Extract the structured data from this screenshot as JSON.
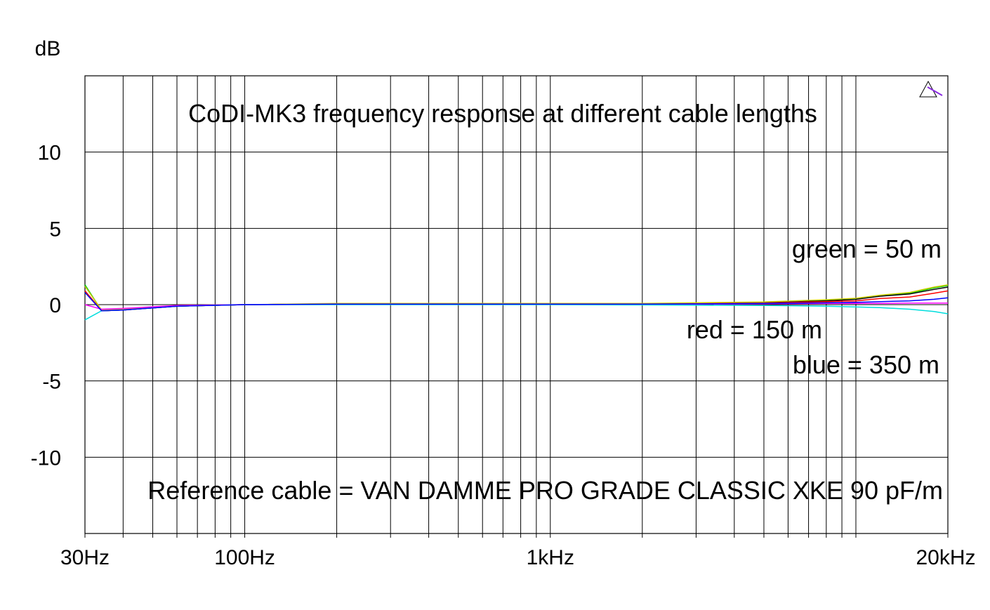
{
  "chart_data": {
    "type": "line",
    "title": "CoDI-MK3 frequency response at different cable lengths",
    "ylabel": "dB",
    "xlabel": "",
    "x_scale": "log",
    "xlim": [
      30,
      20000
    ],
    "ylim": [
      -15,
      15
    ],
    "grid": true,
    "x_ticks": [
      {
        "value": 30,
        "label": "30Hz"
      },
      {
        "value": 100,
        "label": "100Hz"
      },
      {
        "value": 1000,
        "label": "1kHz"
      },
      {
        "value": 20000,
        "label": "20kHz"
      }
    ],
    "y_ticks": [
      {
        "value": 10,
        "label": "10"
      },
      {
        "value": 5,
        "label": "5"
      },
      {
        "value": 0,
        "label": "0"
      },
      {
        "value": -5,
        "label": "-5"
      },
      {
        "value": -10,
        "label": "-10"
      }
    ],
    "annotations": {
      "green": "green = 50 m",
      "red": "red = 150 m",
      "blue": "blue = 350 m",
      "reference": "Reference cable = VAN DAMME PRO GRADE CLASSIC XKE 90 pF/m"
    },
    "series": [
      {
        "color": "#00cc00",
        "x": [
          30,
          34,
          40,
          60,
          100,
          200,
          500,
          1000,
          2000,
          5000,
          8000,
          10000,
          12000,
          15000,
          18000,
          20000
        ],
        "values": [
          1.3,
          -0.4,
          -0.35,
          -0.1,
          0.0,
          0.05,
          0.05,
          0.05,
          0.05,
          0.15,
          0.3,
          0.4,
          0.6,
          0.75,
          1.1,
          1.25
        ]
      },
      {
        "color": "#000000",
        "x": [
          30,
          34,
          40,
          60,
          100,
          200,
          500,
          1000,
          2000,
          5000,
          8000,
          10000,
          12000,
          15000,
          18000,
          20000
        ],
        "values": [
          0.9,
          -0.4,
          -0.35,
          -0.1,
          0.0,
          0.05,
          0.05,
          0.05,
          0.05,
          0.12,
          0.25,
          0.35,
          0.55,
          0.7,
          1.0,
          1.15
        ]
      },
      {
        "color": "#ff0000",
        "x": [
          30,
          34,
          40,
          60,
          100,
          200,
          500,
          1000,
          2000,
          5000,
          8000,
          10000,
          12000,
          15000,
          18000,
          20000
        ],
        "values": [
          0.9,
          -0.4,
          -0.35,
          -0.1,
          0.0,
          0.05,
          0.05,
          0.05,
          0.05,
          0.1,
          0.2,
          0.25,
          0.4,
          0.5,
          0.75,
          0.9
        ]
      },
      {
        "color": "#cccc00",
        "x": [
          30,
          34,
          40,
          60,
          100,
          200,
          500,
          1000,
          2000,
          5000,
          8000,
          10000,
          12000,
          15000,
          18000,
          20000
        ],
        "values": [
          1.2,
          -0.35,
          -0.3,
          -0.05,
          0.0,
          0.08,
          0.08,
          0.08,
          0.08,
          0.18,
          0.32,
          0.42,
          0.62,
          0.8,
          1.15,
          1.3
        ]
      },
      {
        "color": "#ff00ff",
        "x": [
          30,
          34,
          40,
          60,
          100,
          200,
          500,
          1000,
          2000,
          5000,
          8000,
          10000,
          12000,
          15000,
          18000,
          20000
        ],
        "values": [
          0.0,
          -0.3,
          -0.25,
          -0.05,
          0.0,
          0.02,
          0.02,
          0.02,
          0.02,
          0.05,
          0.08,
          0.08,
          0.08,
          0.1,
          0.1,
          0.1
        ]
      },
      {
        "color": "#00dddd",
        "x": [
          30,
          34,
          40,
          60,
          100,
          200,
          500,
          1000,
          2000,
          5000,
          8000,
          10000,
          12000,
          15000,
          18000,
          20000
        ],
        "values": [
          -1.0,
          -0.4,
          -0.35,
          -0.1,
          0.0,
          0.0,
          0.0,
          0.0,
          -0.02,
          -0.05,
          -0.1,
          -0.15,
          -0.2,
          -0.3,
          -0.45,
          -0.6
        ]
      },
      {
        "color": "#0000ff",
        "x": [
          30,
          34,
          40,
          60,
          100,
          200,
          500,
          1000,
          2000,
          5000,
          8000,
          10000,
          12000,
          15000,
          18000,
          20000
        ],
        "values": [
          0.8,
          -0.4,
          -0.35,
          -0.1,
          0.0,
          0.03,
          0.03,
          0.03,
          0.03,
          0.08,
          0.12,
          0.15,
          0.2,
          0.25,
          0.35,
          0.45
        ]
      }
    ]
  }
}
